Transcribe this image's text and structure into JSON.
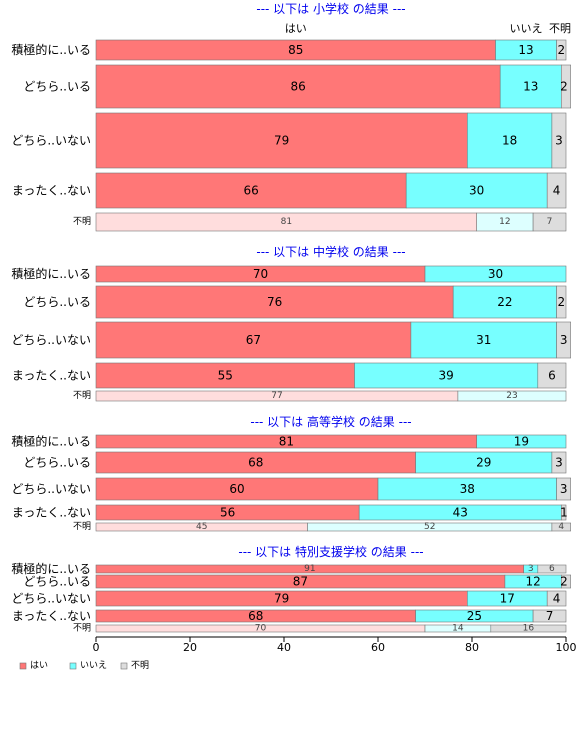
{
  "chart_data": {
    "type": "bar",
    "stacked": true,
    "orientation": "horizontal",
    "xlim": [
      0,
      100
    ],
    "x_ticks": [
      "0",
      "20",
      "40",
      "60",
      "80",
      "100"
    ],
    "series_names": [
      "はい",
      "いいえ",
      "不明"
    ],
    "colors": {
      "yes": "#ff7777",
      "no": "#77ffff",
      "unknown": "#dddddd",
      "yes_light": "#ffdddd",
      "no_light": "#ddffff",
      "unknown_light": "#dddddd",
      "title": "#0000ee"
    },
    "legend": {
      "position": "bottom-left",
      "labels": [
        "はい",
        "いいえ",
        "不明"
      ]
    },
    "panels": [
      {
        "title": "--- 以下は 小学校 の結果 ---",
        "header_labels": [
          "はい",
          "いいえ",
          "不明"
        ],
        "rows": [
          {
            "label": "積極的に..いる",
            "values": [
              85,
              13,
              2
            ]
          },
          {
            "label": "どちら..いる",
            "values": [
              86,
              13,
              2
            ]
          },
          {
            "label": "どちら..いない",
            "values": [
              79,
              18,
              3
            ]
          },
          {
            "label": "まったく..ない",
            "values": [
              66,
              30,
              4
            ]
          },
          {
            "label": "不明",
            "values": [
              81,
              12,
              7
            ],
            "minor": true
          }
        ]
      },
      {
        "title": "--- 以下は 中学校 の結果 ---",
        "rows": [
          {
            "label": "積極的に..いる",
            "values": [
              70,
              30,
              0
            ]
          },
          {
            "label": "どちら..いる",
            "values": [
              76,
              22,
              2
            ]
          },
          {
            "label": "どちら..いない",
            "values": [
              67,
              31,
              3
            ]
          },
          {
            "label": "まったく..ない",
            "values": [
              55,
              39,
              6
            ]
          },
          {
            "label": "不明",
            "values": [
              77,
              23,
              0
            ],
            "minor": true
          }
        ]
      },
      {
        "title": "--- 以下は 高等学校 の結果 ---",
        "rows": [
          {
            "label": "積極的に..いる",
            "values": [
              81,
              19,
              0
            ]
          },
          {
            "label": "どちら..いる",
            "values": [
              68,
              29,
              3
            ]
          },
          {
            "label": "どちら..いない",
            "values": [
              60,
              38,
              3
            ]
          },
          {
            "label": "まったく..ない",
            "values": [
              56,
              43,
              1
            ]
          },
          {
            "label": "不明",
            "values": [
              45,
              52,
              4
            ],
            "minor": true
          }
        ]
      },
      {
        "title": "--- 以下は 特別支援学校 の結果 ---",
        "rows": [
          {
            "label": "積極的に..いる",
            "values": [
              91,
              3,
              6
            ],
            "minor_values": true
          },
          {
            "label": "どちら..いる",
            "values": [
              87,
              12,
              2
            ]
          },
          {
            "label": "どちら..いない",
            "values": [
              79,
              17,
              4
            ]
          },
          {
            "label": "まったく..ない",
            "values": [
              68,
              25,
              7
            ]
          },
          {
            "label": "不明",
            "values": [
              70,
              14,
              16
            ],
            "minor": true
          }
        ]
      }
    ]
  }
}
